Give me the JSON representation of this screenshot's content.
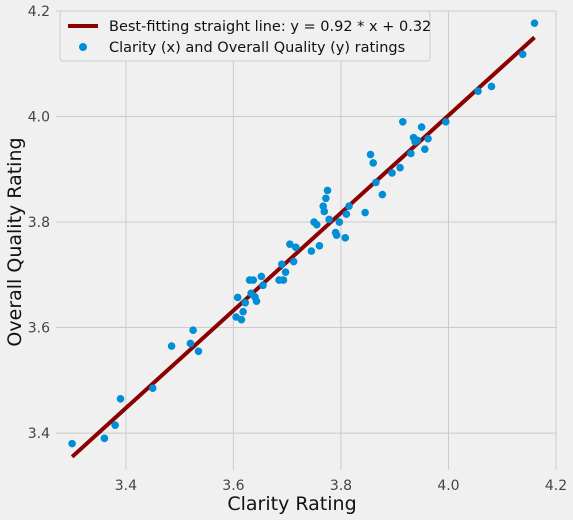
{
  "chart_data": {
    "type": "scatter",
    "title": "",
    "xlabel": "Clarity Rating",
    "ylabel": "Overall Quality Rating",
    "xlim": [
      3.27,
      4.2
    ],
    "ylim": [
      3.33,
      4.2
    ],
    "xticks": [
      3.4,
      3.6,
      3.8,
      4.0,
      4.2
    ],
    "yticks": [
      3.4,
      3.6,
      3.8,
      4.0,
      4.2
    ],
    "grid": true,
    "legend_position": "top-left",
    "colors": {
      "scatter": "#008fd5",
      "line": "#8b0000",
      "background": "#f0f0f0",
      "grid": "#cbcbcb"
    },
    "fit_line": {
      "label": "Best-fitting straight line:  y = 0.92 * x + 0.32",
      "x_range": [
        3.3,
        4.16
      ],
      "y_range": [
        3.355,
        4.15
      ]
    },
    "series": [
      {
        "name": "Clarity (x) and Overall Quality (y) ratings",
        "points": [
          [
            3.3,
            3.38
          ],
          [
            3.36,
            3.39
          ],
          [
            3.38,
            3.415
          ],
          [
            3.39,
            3.465
          ],
          [
            3.45,
            3.485
          ],
          [
            3.485,
            3.565
          ],
          [
            3.52,
            3.57
          ],
          [
            3.525,
            3.595
          ],
          [
            3.535,
            3.555
          ],
          [
            3.605,
            3.62
          ],
          [
            3.608,
            3.657
          ],
          [
            3.615,
            3.615
          ],
          [
            3.618,
            3.63
          ],
          [
            3.622,
            3.647
          ],
          [
            3.63,
            3.69
          ],
          [
            3.633,
            3.665
          ],
          [
            3.637,
            3.69
          ],
          [
            3.64,
            3.658
          ],
          [
            3.643,
            3.65
          ],
          [
            3.652,
            3.697
          ],
          [
            3.655,
            3.68
          ],
          [
            3.685,
            3.69
          ],
          [
            3.69,
            3.72
          ],
          [
            3.693,
            3.69
          ],
          [
            3.697,
            3.705
          ],
          [
            3.705,
            3.758
          ],
          [
            3.712,
            3.725
          ],
          [
            3.716,
            3.752
          ],
          [
            3.745,
            3.745
          ],
          [
            3.75,
            3.8
          ],
          [
            3.755,
            3.795
          ],
          [
            3.76,
            3.755
          ],
          [
            3.767,
            3.83
          ],
          [
            3.769,
            3.82
          ],
          [
            3.772,
            3.845
          ],
          [
            3.775,
            3.86
          ],
          [
            3.778,
            3.805
          ],
          [
            3.79,
            3.78
          ],
          [
            3.792,
            3.775
          ],
          [
            3.797,
            3.8
          ],
          [
            3.808,
            3.77
          ],
          [
            3.81,
            3.815
          ],
          [
            3.815,
            3.83
          ],
          [
            3.845,
            3.818
          ],
          [
            3.855,
            3.928
          ],
          [
            3.86,
            3.912
          ],
          [
            3.865,
            3.875
          ],
          [
            3.877,
            3.852
          ],
          [
            3.895,
            3.893
          ],
          [
            3.91,
            3.903
          ],
          [
            3.915,
            3.99
          ],
          [
            3.93,
            3.93
          ],
          [
            3.935,
            3.96
          ],
          [
            3.938,
            3.952
          ],
          [
            3.942,
            3.955
          ],
          [
            3.95,
            3.98
          ],
          [
            3.956,
            3.938
          ],
          [
            3.962,
            3.958
          ],
          [
            3.995,
            3.99
          ],
          [
            4.055,
            4.048
          ],
          [
            4.08,
            4.057
          ],
          [
            4.138,
            4.118
          ],
          [
            4.16,
            4.177
          ]
        ]
      }
    ]
  }
}
